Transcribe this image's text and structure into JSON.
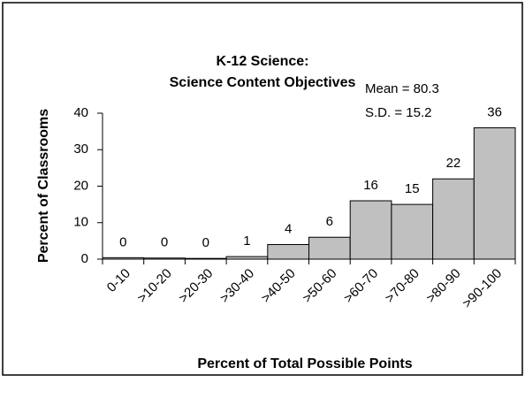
{
  "chart_data": {
    "type": "bar",
    "title": [
      "K-12 Science:",
      "Science Content Objectives"
    ],
    "annotations": [
      "Mean = 80.3",
      "S.D. = 15.2"
    ],
    "x_label": "Percent of Total Possible Points",
    "y_label": "Percent of Classrooms",
    "categories": [
      "0-10",
      ">10-20",
      ">20-30",
      ">30-40",
      ">40-50",
      ">50-60",
      ">60-70",
      ">70-80",
      ">80-90",
      ">90-100"
    ],
    "values": [
      0.4,
      0.3,
      0.2,
      0.7,
      4,
      6,
      16,
      15,
      22,
      36
    ],
    "value_labels": [
      "0",
      "0",
      "0",
      "1",
      "4",
      "6",
      "16",
      "15",
      "22",
      "36"
    ],
    "color": "#c0c0c0",
    "ylim": [
      0,
      40
    ],
    "yticks": [
      0,
      10,
      20,
      30,
      40
    ],
    "grid": false
  }
}
